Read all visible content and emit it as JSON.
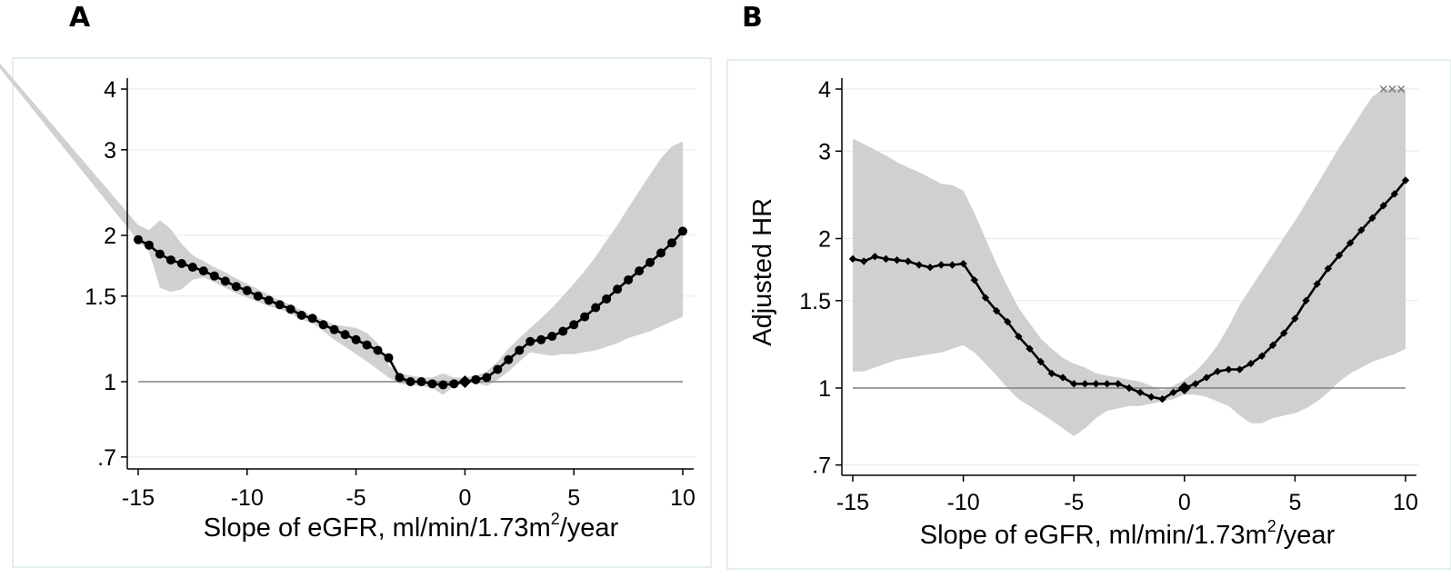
{
  "panels": [
    {
      "letter": "A"
    },
    {
      "letter": "B"
    }
  ],
  "colors": {
    "band": "#d0d0d0",
    "line": "#000000",
    "ref": "#808080",
    "grid": "#e4eef0",
    "frame": "#dce8ec"
  },
  "chart_data": [
    {
      "type": "line",
      "panel": "A",
      "title": "",
      "xlabel": "Slope of eGFR, ml/min/1.73m²/year",
      "xlabel_main": "Slope of eGFR, ml/min/1.73m",
      "xlabel_sup": "2",
      "xlabel_tail": "/year",
      "ylabel": "",
      "yscale": "log",
      "xlim": [
        -15,
        10
      ],
      "ylim": [
        0.68,
        4.1
      ],
      "xticks": [
        -15,
        -10,
        -5,
        0,
        5,
        10
      ],
      "xtick_labels": [
        "-15",
        "-10",
        "-5",
        "0",
        "5",
        "10"
      ],
      "yticks": [
        0.7,
        1,
        1.5,
        2,
        3,
        4
      ],
      "ytick_labels": [
        ".7",
        "1",
        "1.5",
        "2",
        "3",
        "4"
      ],
      "reference_line": 1,
      "reference_marker": {
        "x": 0,
        "y": 1,
        "shape": "diamond"
      },
      "series": [
        {
          "x": [
            -15,
            -14.5,
            -14,
            -13.5,
            -13,
            -12.5,
            -12,
            -11.5,
            -11,
            -10.5,
            -10,
            -9.5,
            -9,
            -8.5,
            -8,
            -7.5,
            -7,
            -6.5,
            -6,
            -5.5,
            -5,
            -4.5,
            -4,
            -3.5,
            -3,
            -2.5,
            -2,
            -1.5,
            -1,
            -0.5,
            0,
            0.5,
            1,
            1.5,
            2,
            2.5,
            3,
            3.5,
            4,
            4.5,
            5,
            5.5,
            6,
            6.5,
            7,
            7.5,
            8,
            8.5,
            9,
            9.5,
            10
          ],
          "y": [
            1.96,
            1.91,
            1.83,
            1.78,
            1.75,
            1.72,
            1.69,
            1.65,
            1.61,
            1.57,
            1.54,
            1.5,
            1.47,
            1.44,
            1.41,
            1.37,
            1.35,
            1.31,
            1.28,
            1.25,
            1.22,
            1.19,
            1.16,
            1.12,
            1.02,
            1.0,
            1.0,
            0.99,
            0.985,
            0.99,
            1.0,
            1.01,
            1.02,
            1.06,
            1.11,
            1.16,
            1.21,
            1.22,
            1.24,
            1.27,
            1.31,
            1.36,
            1.42,
            1.48,
            1.55,
            1.62,
            1.69,
            1.76,
            1.84,
            1.93,
            2.04
          ],
          "marker": "circle",
          "ci_upper": [
            2.1,
            2.05,
            2.15,
            2.06,
            1.92,
            1.82,
            1.77,
            1.72,
            1.68,
            1.63,
            1.59,
            1.55,
            1.51,
            1.47,
            1.44,
            1.4,
            1.37,
            1.34,
            1.31,
            1.3,
            1.29,
            1.26,
            1.2,
            1.08,
            1.04,
            1.03,
            1.02,
            1.02,
            1.04,
            1.02,
            1.02,
            1.03,
            1.05,
            1.1,
            1.17,
            1.23,
            1.29,
            1.35,
            1.42,
            1.5,
            1.59,
            1.69,
            1.81,
            1.95,
            2.1,
            2.28,
            2.47,
            2.67,
            2.88,
            3.05,
            3.12
          ],
          "ci_lower": [
            1.95,
            1.85,
            1.56,
            1.53,
            1.55,
            1.62,
            1.64,
            1.6,
            1.56,
            1.52,
            1.49,
            1.46,
            1.43,
            1.41,
            1.38,
            1.34,
            1.32,
            1.27,
            1.22,
            1.18,
            1.14,
            1.1,
            1.06,
            1.02,
            0.99,
            0.985,
            0.98,
            0.97,
            0.94,
            0.98,
            0.99,
            0.995,
            0.98,
            1.01,
            1.05,
            1.1,
            1.15,
            1.14,
            1.13,
            1.14,
            1.14,
            1.15,
            1.16,
            1.18,
            1.2,
            1.23,
            1.25,
            1.27,
            1.3,
            1.33,
            1.36
          ],
          "ci_extension": {
            "x": [
              -21.5,
              -15
            ],
            "upper": [
              4.6,
              2.1
            ],
            "lower": [
              4.5,
              1.95
            ]
          }
        }
      ]
    },
    {
      "type": "line",
      "panel": "B",
      "title": "",
      "xlabel": "Slope of eGFR, ml/min/1.73m²/year",
      "xlabel_main": "Slope of eGFR, ml/min/1.73m",
      "xlabel_sup": "2",
      "xlabel_tail": "/year",
      "ylabel": "Adjusted HR",
      "yscale": "log",
      "xlim": [
        -15,
        10
      ],
      "ylim": [
        0.68,
        4.1
      ],
      "xticks": [
        -15,
        -10,
        -5,
        0,
        5,
        10
      ],
      "xtick_labels": [
        "-15",
        "-10",
        "-5",
        "0",
        "5",
        "10"
      ],
      "yticks": [
        0.7,
        1,
        1.5,
        2,
        3,
        4
      ],
      "ytick_labels": [
        ".7",
        "1",
        "1.5",
        "2",
        "3",
        "4"
      ],
      "reference_line": 1,
      "reference_marker": {
        "x": 0,
        "y": 1,
        "shape": "diamond"
      },
      "top_markers": {
        "x": [
          9,
          9.4,
          9.8
        ],
        "y": 4,
        "shape": "x"
      },
      "series": [
        {
          "x": [
            -15,
            -14.5,
            -14,
            -13.5,
            -13,
            -12.5,
            -12,
            -11.5,
            -11,
            -10.5,
            -10,
            -9.5,
            -9,
            -8.5,
            -8,
            -7.5,
            -7,
            -6.5,
            -6,
            -5.5,
            -5,
            -4.5,
            -4,
            -3.5,
            -3,
            -2.5,
            -2,
            -1.5,
            -1,
            -0.5,
            0,
            0.5,
            1,
            1.5,
            2,
            2.5,
            3,
            3.5,
            4,
            4.5,
            5,
            5.5,
            6,
            6.5,
            7,
            7.5,
            8,
            8.5,
            9,
            9.5,
            10
          ],
          "y": [
            1.82,
            1.8,
            1.84,
            1.82,
            1.81,
            1.8,
            1.77,
            1.75,
            1.77,
            1.77,
            1.78,
            1.65,
            1.52,
            1.43,
            1.36,
            1.27,
            1.2,
            1.13,
            1.07,
            1.05,
            1.02,
            1.02,
            1.02,
            1.02,
            1.02,
            1.0,
            0.98,
            0.96,
            0.95,
            0.98,
            1.0,
            1.02,
            1.05,
            1.08,
            1.09,
            1.09,
            1.12,
            1.16,
            1.22,
            1.29,
            1.38,
            1.5,
            1.62,
            1.74,
            1.85,
            1.96,
            2.08,
            2.2,
            2.33,
            2.46,
            2.62
          ],
          "marker": "diamond",
          "ci_upper": [
            3.18,
            3.1,
            3.02,
            2.94,
            2.85,
            2.78,
            2.72,
            2.65,
            2.58,
            2.56,
            2.5,
            2.25,
            2.0,
            1.78,
            1.6,
            1.45,
            1.35,
            1.26,
            1.2,
            1.15,
            1.12,
            1.1,
            1.07,
            1.06,
            1.05,
            1.04,
            1.03,
            1.01,
            0.99,
            1.01,
            1.04,
            1.08,
            1.14,
            1.22,
            1.33,
            1.47,
            1.59,
            1.72,
            1.86,
            2.01,
            2.17,
            2.36,
            2.57,
            2.8,
            3.05,
            3.3,
            3.58,
            3.86,
            4.0,
            4.0,
            4.0
          ],
          "ci_lower": [
            1.08,
            1.08,
            1.1,
            1.12,
            1.14,
            1.15,
            1.16,
            1.17,
            1.18,
            1.2,
            1.22,
            1.18,
            1.12,
            1.06,
            1.0,
            0.95,
            0.92,
            0.89,
            0.86,
            0.83,
            0.8,
            0.83,
            0.87,
            0.9,
            0.91,
            0.92,
            0.92,
            0.93,
            0.94,
            0.95,
            0.97,
            0.97,
            0.96,
            0.94,
            0.92,
            0.88,
            0.85,
            0.85,
            0.87,
            0.88,
            0.89,
            0.91,
            0.94,
            0.98,
            1.03,
            1.07,
            1.1,
            1.13,
            1.15,
            1.17,
            1.2
          ]
        }
      ]
    }
  ]
}
